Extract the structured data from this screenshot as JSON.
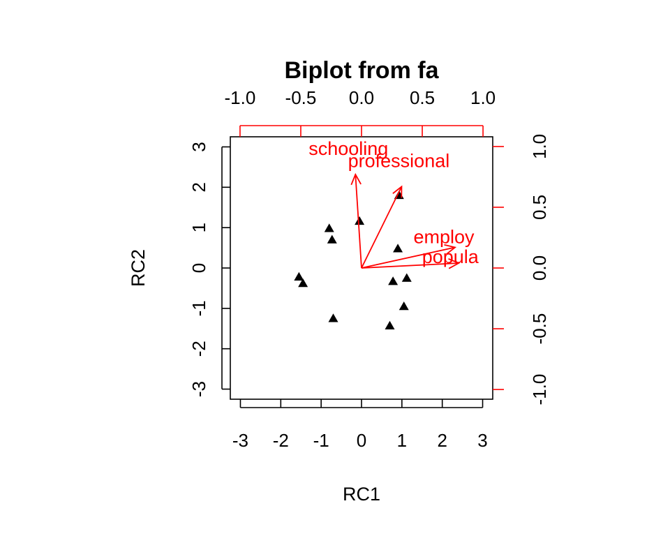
{
  "chart_data": {
    "type": "scatter",
    "title": "Biplot from fa",
    "xlabel": "RC1",
    "ylabel": "RC2",
    "xlim": [
      -3.25,
      3.25
    ],
    "ylim": [
      -3.25,
      3.25
    ],
    "x_ticks": [
      "-3",
      "-2",
      "-1",
      "0",
      "1",
      "2",
      "3"
    ],
    "y_ticks": [
      "-3",
      "-2",
      "-1",
      "0",
      "1",
      "2",
      "3"
    ],
    "loading_axis_lim": [
      -1.08,
      1.08
    ],
    "loading_ticks": [
      "-1.0",
      "-0.5",
      "0.0",
      "0.5",
      "1.0"
    ],
    "loading_color": "#ff0000",
    "score_marker": "filled-triangle",
    "scores": [
      {
        "x": 0.93,
        "y": 1.8
      },
      {
        "x": -0.05,
        "y": 1.16
      },
      {
        "x": -0.8,
        "y": 0.98
      },
      {
        "x": -0.73,
        "y": 0.7
      },
      {
        "x": 0.9,
        "y": 0.48
      },
      {
        "x": -1.55,
        "y": -0.22
      },
      {
        "x": -1.45,
        "y": -0.38
      },
      {
        "x": 0.78,
        "y": -0.33
      },
      {
        "x": 1.12,
        "y": -0.25
      },
      {
        "x": 1.05,
        "y": -0.95
      },
      {
        "x": -0.7,
        "y": -1.25
      },
      {
        "x": 0.7,
        "y": -1.43
      }
    ],
    "loadings": [
      {
        "name": "schooling",
        "x": -0.05,
        "y": 0.77,
        "label": "schooling"
      },
      {
        "name": "professional",
        "x": 0.33,
        "y": 0.67,
        "label": "professional"
      },
      {
        "name": "employ",
        "x": 0.77,
        "y": 0.17,
        "label": "employ"
      },
      {
        "name": "popula",
        "x": 0.8,
        "y": 0.04,
        "label": "popula"
      }
    ]
  }
}
